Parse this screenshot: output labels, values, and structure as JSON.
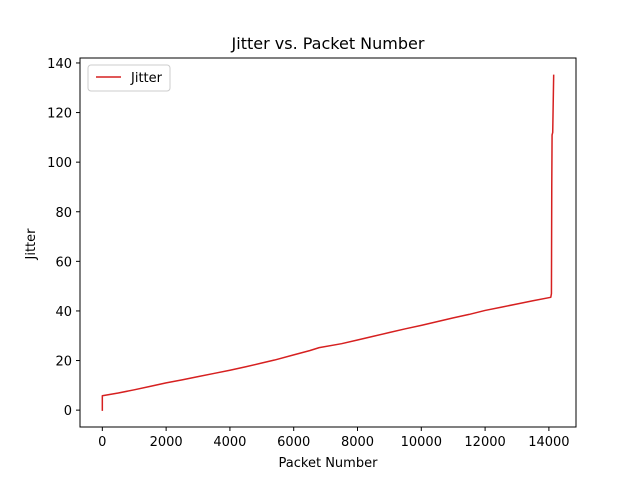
{
  "chart_data": {
    "type": "line",
    "title": "Jitter vs. Packet Number",
    "xlabel": "Packet Number",
    "ylabel": "Jitter",
    "xlim": [
      -700,
      14850
    ],
    "ylim": [
      -6.8,
      142
    ],
    "xticks": [
      0,
      2000,
      4000,
      6000,
      8000,
      10000,
      12000,
      14000
    ],
    "yticks": [
      0,
      20,
      40,
      60,
      80,
      100,
      120,
      140
    ],
    "grid": false,
    "legend": {
      "placement": "top-left",
      "entries": [
        "Jitter"
      ]
    },
    "series": [
      {
        "name": "Jitter",
        "color": "#d62020",
        "points": [
          [
            0,
            0
          ],
          [
            0,
            5.8
          ],
          [
            500,
            6.9
          ],
          [
            1000,
            8.2
          ],
          [
            1500,
            9.6
          ],
          [
            2000,
            11
          ],
          [
            2500,
            12.2
          ],
          [
            3000,
            13.5
          ],
          [
            3500,
            14.8
          ],
          [
            4000,
            16.1
          ],
          [
            4500,
            17.5
          ],
          [
            5000,
            19
          ],
          [
            5400,
            20.2
          ],
          [
            6000,
            22.3
          ],
          [
            6500,
            24
          ],
          [
            6800,
            25.2
          ],
          [
            7500,
            26.8
          ],
          [
            8000,
            28.3
          ],
          [
            8500,
            29.8
          ],
          [
            9000,
            31.3
          ],
          [
            9500,
            32.8
          ],
          [
            10000,
            34.2
          ],
          [
            10500,
            35.7
          ],
          [
            11000,
            37.2
          ],
          [
            11500,
            38.6
          ],
          [
            12000,
            40.2
          ],
          [
            12500,
            41.5
          ],
          [
            13000,
            42.8
          ],
          [
            13500,
            44.1
          ],
          [
            14060,
            45.5
          ],
          [
            14080,
            47
          ],
          [
            14090,
            90
          ],
          [
            14100,
            111
          ],
          [
            14120,
            112
          ],
          [
            14150,
            135
          ]
        ]
      }
    ]
  }
}
